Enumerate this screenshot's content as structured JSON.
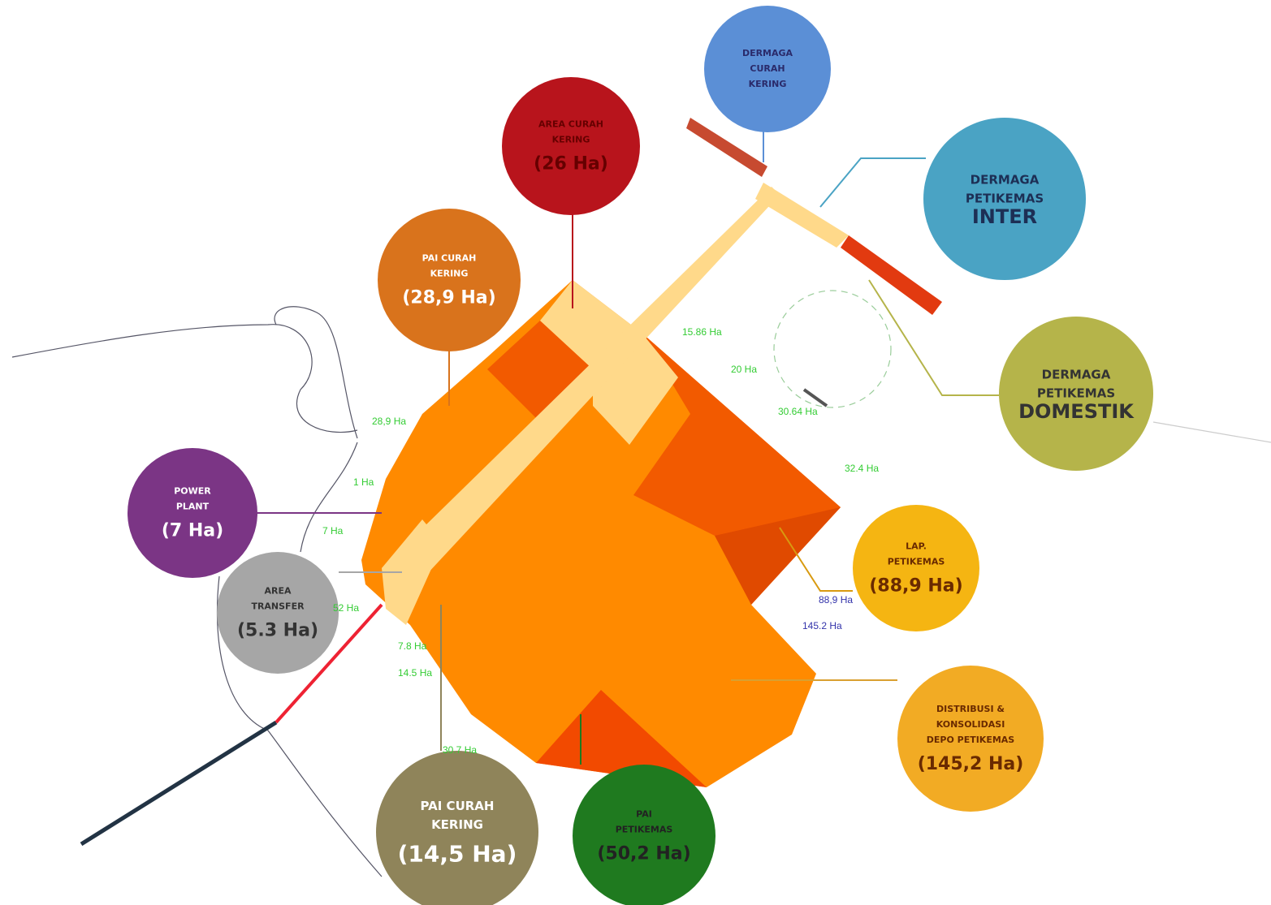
{
  "callouts": [
    {
      "lines": [
        "DERMAGA",
        "CURAH",
        "KERING"
      ],
      "area": null
    },
    {
      "lines": [
        "AREA CURAH",
        "KERING"
      ],
      "area": "(26 Ha)"
    },
    {
      "lines": [
        "DERMAGA",
        "PETIKEMAS",
        "INTER"
      ],
      "area": null
    },
    {
      "lines": [
        "PAI CURAH",
        "KERING"
      ],
      "area": "(28,9 Ha)"
    },
    {
      "lines": [
        "DERMAGA",
        "PETIKEMAS",
        "DOMESTIK"
      ],
      "area": null
    },
    {
      "lines": [
        "POWER",
        "PLANT"
      ],
      "area": "(7 Ha)"
    },
    {
      "lines": [
        "AREA",
        "TRANSFER"
      ],
      "area": "(5.3 Ha)"
    },
    {
      "lines": [
        "LAP.",
        "PETIKEMAS"
      ],
      "area": "(88,9 Ha)"
    },
    {
      "lines": [
        "DISTRIBUSI &",
        "KONSOLIDASI",
        "DEPO PETIKEMAS"
      ],
      "area": "(145,2 Ha)"
    },
    {
      "lines": [
        "PAI CURAH",
        "KERING"
      ],
      "area": "(14,5 Ha)"
    },
    {
      "lines": [
        "PAI",
        "PETIKEMAS"
      ],
      "area": "(50,2 Ha)"
    }
  ],
  "area_labels": [
    "15.86 Ha",
    "20 Ha",
    "30.64 Ha",
    "32.4 Ha",
    "28,9 Ha",
    "1 Ha",
    "7 Ha",
    "52 Ha",
    "7.8 Ha",
    "14.5 Ha",
    "30.7 Ha",
    "88,9 Ha",
    "145.2 Ha"
  ]
}
